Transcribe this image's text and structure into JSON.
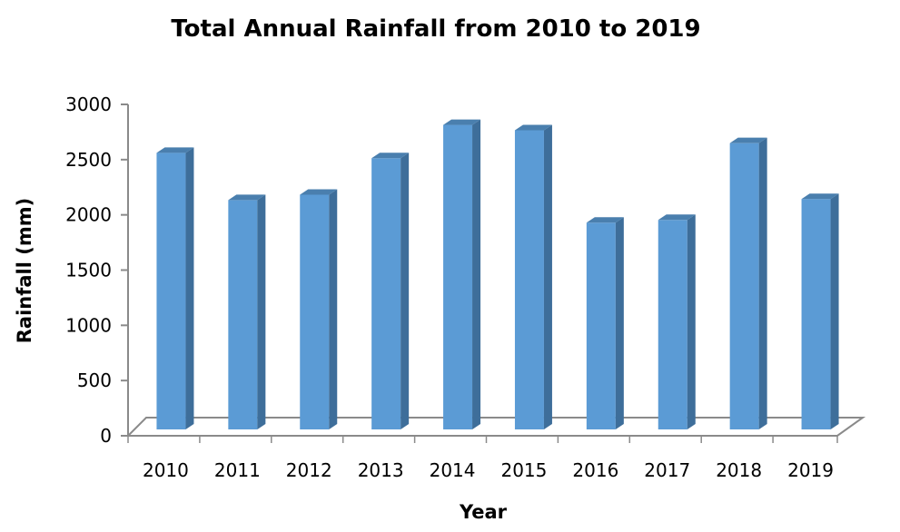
{
  "chart_data": {
    "type": "bar",
    "title": "Total Annual Rainfall from 2010 to 2019",
    "xlabel": "Year",
    "ylabel": "Rainfall (mm)",
    "categories": [
      "2010",
      "2011",
      "2012",
      "2013",
      "2014",
      "2015",
      "2016",
      "2017",
      "2018",
      "2019"
    ],
    "values": [
      2600,
      2160,
      2210,
      2550,
      2860,
      2810,
      1950,
      1975,
      2690,
      2170
    ],
    "ylim": [
      0,
      3000
    ],
    "yticks": [
      "0",
      "500",
      "1000",
      "1500",
      "2000",
      "2500",
      "3000"
    ],
    "grid": false,
    "legend": "none",
    "style": "3d-column",
    "colors": {
      "bar_front": "#5B9BD5",
      "bar_side": "#3E6E9A",
      "bar_top": "#4A7FAE",
      "axis": "#8A8A8A",
      "floor": "#FFFFFF"
    }
  }
}
